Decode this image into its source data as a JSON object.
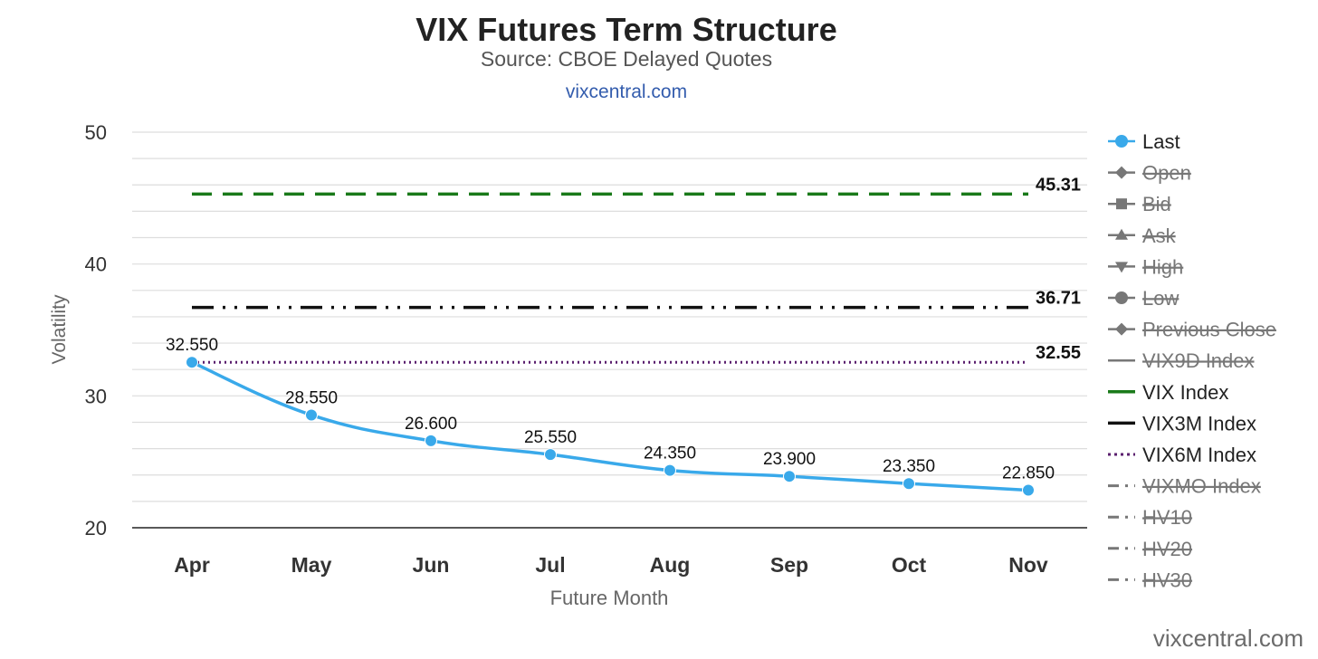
{
  "chart_data": {
    "type": "line",
    "title": "VIX Futures Term Structure",
    "subtitle": "Source: CBOE Delayed Quotes",
    "link_text": "vixcentral.com",
    "credit": "vixcentral.com",
    "xlabel": "Future Month",
    "ylabel": "Volatility",
    "categories": [
      "Apr",
      "May",
      "Jun",
      "Jul",
      "Aug",
      "Sep",
      "Oct",
      "Nov"
    ],
    "ylim": [
      20,
      50
    ],
    "yticks": [
      20,
      30,
      40,
      50
    ],
    "grid": true,
    "legend_position": "right",
    "series": [
      {
        "name": "Last",
        "kind": "line-markers",
        "color": "#39a9ea",
        "values": [
          32.55,
          28.55,
          26.6,
          25.55,
          24.35,
          23.9,
          23.35,
          22.85
        ],
        "data_labels": [
          "32.550",
          "28.550",
          "26.600",
          "25.550",
          "24.350",
          "23.900",
          "23.350",
          "22.850"
        ]
      },
      {
        "name": "VIX Index",
        "kind": "flat",
        "color": "#1a7a1a",
        "value": 45.31,
        "end_label": "45.31",
        "dash": "dash"
      },
      {
        "name": "VIX3M Index",
        "kind": "flat",
        "color": "#111111",
        "value": 36.71,
        "end_label": "36.71",
        "dash": "dashdotdot"
      },
      {
        "name": "VIX6M Index",
        "kind": "flat",
        "color": "#5a1f6e",
        "value": 32.55,
        "end_label": "32.55",
        "dash": "dot"
      }
    ],
    "legend": [
      {
        "label": "Last",
        "symbol": "circle",
        "color": "#39a9ea",
        "visible": true
      },
      {
        "label": "Open",
        "symbol": "diamond",
        "color": "#777777",
        "visible": false
      },
      {
        "label": "Bid",
        "symbol": "square",
        "color": "#777777",
        "visible": false
      },
      {
        "label": "Ask",
        "symbol": "triangle-up",
        "color": "#777777",
        "visible": false
      },
      {
        "label": "High",
        "symbol": "triangle-down",
        "color": "#777777",
        "visible": false
      },
      {
        "label": "Low",
        "symbol": "circle",
        "color": "#777777",
        "visible": false
      },
      {
        "label": "Previous Close",
        "symbol": "diamond",
        "color": "#777777",
        "visible": false
      },
      {
        "label": "VIX9D Index",
        "symbol": "solid-line",
        "color": "#777777",
        "visible": false
      },
      {
        "label": "VIX Index",
        "symbol": "solid-line",
        "color": "#1a7a1a",
        "visible": true
      },
      {
        "label": "VIX3M Index",
        "symbol": "solid-line",
        "color": "#111111",
        "visible": true
      },
      {
        "label": "VIX6M Index",
        "symbol": "dotted-line",
        "color": "#5a1f6e",
        "visible": true
      },
      {
        "label": "VIXMO Index",
        "symbol": "dash-dot-line",
        "color": "#777777",
        "visible": false
      },
      {
        "label": "HV10",
        "symbol": "dash-dot-line",
        "color": "#777777",
        "visible": false
      },
      {
        "label": "HV20",
        "symbol": "dash-dot-line",
        "color": "#777777",
        "visible": false
      },
      {
        "label": "HV30",
        "symbol": "dash-dot-line",
        "color": "#777777",
        "visible": false
      }
    ]
  }
}
